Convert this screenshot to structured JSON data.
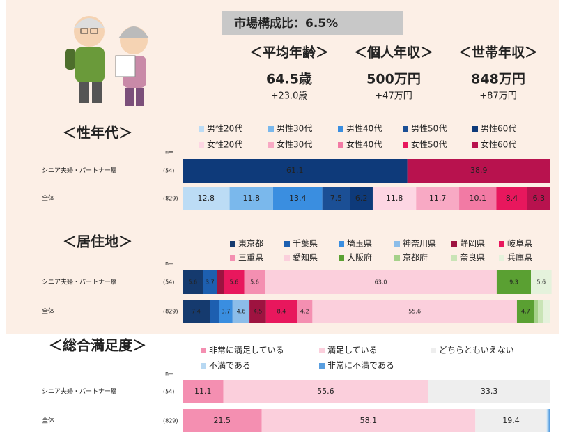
{
  "header": {
    "market_share": "市場構成比：6.5%",
    "stats": [
      {
        "label": "＜平均年齢＞",
        "value": "64.5歳",
        "diff": "+23.0歳"
      },
      {
        "label": "＜個人年収＞",
        "value": "500万円",
        "diff": "+47万円"
      },
      {
        "label": "＜世帯年収＞",
        "value": "848万円",
        "diff": "+87万円"
      }
    ]
  },
  "chart_data": [
    {
      "type": "stacked-bar",
      "title": "＜性年代＞",
      "categories": [
        "シニア夫婦・パートナー層",
        "全体"
      ],
      "n_label": "n=",
      "sample_sizes": [
        "(54)",
        "(829)"
      ],
      "xlim": [
        0,
        100
      ],
      "series": [
        {
          "name": "男性20代",
          "color": "#bcdcf5",
          "values": [
            null,
            12.8
          ],
          "value_labels": [
            null,
            "12.8"
          ]
        },
        {
          "name": "男性30代",
          "color": "#7ab8ec",
          "values": [
            null,
            11.8
          ],
          "value_labels": [
            null,
            "11.8"
          ]
        },
        {
          "name": "男性40代",
          "color": "#3a8ee0",
          "values": [
            null,
            13.4
          ],
          "value_labels": [
            null,
            "13.4"
          ]
        },
        {
          "name": "男性50代",
          "color": "#1b4f95",
          "values": [
            null,
            7.5
          ],
          "value_labels": [
            null,
            "7.5"
          ]
        },
        {
          "name": "男性60代",
          "color": "#0e3a7a",
          "values": [
            61.1,
            6.2
          ],
          "value_labels": [
            "61.1",
            "6.2"
          ]
        },
        {
          "name": "女性20代",
          "color": "#fdd6e3",
          "values": [
            null,
            11.8
          ],
          "value_labels": [
            null,
            "11.8"
          ]
        },
        {
          "name": "女性30代",
          "color": "#f8a9c4",
          "values": [
            null,
            11.7
          ],
          "value_labels": [
            null,
            "11.7"
          ]
        },
        {
          "name": "女性40代",
          "color": "#f27aa4",
          "values": [
            null,
            10.1
          ],
          "value_labels": [
            null,
            "10.1"
          ]
        },
        {
          "name": "女性50代",
          "color": "#e8175d",
          "values": [
            null,
            8.4
          ],
          "value_labels": [
            null,
            "8.4"
          ]
        },
        {
          "name": "女性60代",
          "color": "#b8124e",
          "values": [
            38.9,
            6.3
          ],
          "value_labels": [
            "38.9",
            "6.3"
          ]
        }
      ]
    },
    {
      "type": "stacked-bar",
      "title": "＜居住地＞",
      "categories": [
        "シニア夫婦・パートナー層",
        "全体"
      ],
      "n_label": "n=",
      "sample_sizes": [
        "(54)",
        "(829)"
      ],
      "xlim": [
        0,
        100
      ],
      "series": [
        {
          "name": "東京都",
          "color": "#153a6e",
          "values": [
            5.6,
            7.4
          ],
          "value_labels": [
            "5.6",
            "7.4"
          ]
        },
        {
          "name": "千葉県",
          "color": "#1d5fb0",
          "values": [
            3.7,
            2.5
          ],
          "value_labels": [
            "3.7",
            null
          ]
        },
        {
          "name": "埼玉県",
          "color": "#3a8ee0",
          "values": [
            null,
            3.7
          ],
          "value_labels": [
            null,
            "3.7"
          ]
        },
        {
          "name": "神奈川県",
          "color": "#8cbde9",
          "values": [
            null,
            4.6
          ],
          "value_labels": [
            null,
            "4.6"
          ]
        },
        {
          "name": "静岡県",
          "color": "#9e1340",
          "values": [
            1.9,
            4.5
          ],
          "value_labels": [
            null,
            "4.5"
          ]
        },
        {
          "name": "岐阜県",
          "color": "#e8175d",
          "values": [
            5.6,
            8.4
          ],
          "value_labels": [
            "5.6",
            "8.4"
          ]
        },
        {
          "name": "三重県",
          "color": "#f48fb1",
          "values": [
            5.6,
            4.2
          ],
          "value_labels": [
            "5.6",
            "4.2"
          ]
        },
        {
          "name": "愛知県",
          "color": "#fbcfdc",
          "values": [
            63,
            55.6
          ],
          "value_labels": [
            "63.0",
            "55.6"
          ]
        },
        {
          "name": "大阪府",
          "color": "#5aa032",
          "values": [
            9.3,
            4.7
          ],
          "value_labels": [
            "9.3",
            "4.7"
          ]
        },
        {
          "name": "京都府",
          "color": "#a5d18a",
          "values": [
            null,
            1
          ],
          "value_labels": [
            null,
            null
          ]
        },
        {
          "name": "奈良県",
          "color": "#c9e4b6",
          "values": [
            null,
            1.5
          ],
          "value_labels": [
            null,
            null
          ]
        },
        {
          "name": "兵庫県",
          "color": "#e5f2dc",
          "values": [
            5.6,
            1.9
          ],
          "value_labels": [
            "5.6",
            null
          ]
        }
      ]
    },
    {
      "type": "stacked-bar",
      "title": "＜総合満足度＞",
      "categories": [
        "シニア夫婦・パートナー層",
        "全体"
      ],
      "n_label": "n=",
      "sample_sizes": [
        "(54)",
        "(829)"
      ],
      "xlim": [
        0,
        100
      ],
      "series": [
        {
          "name": "非常に満足している",
          "color": "#f48fb1",
          "values": [
            11.1,
            21.5
          ],
          "value_labels": [
            "11.1",
            "21.5"
          ]
        },
        {
          "name": "満足している",
          "color": "#fbcfdc",
          "values": [
            55.6,
            58.1
          ],
          "value_labels": [
            "55.6",
            "58.1"
          ]
        },
        {
          "name": "どちらともいえない",
          "color": "#eeeeee",
          "values": [
            33.3,
            19.4
          ],
          "value_labels": [
            "33.3",
            "19.4"
          ]
        },
        {
          "name": "不満である",
          "color": "#b7d8f2",
          "values": [
            null,
            0.5
          ],
          "value_labels": [
            null,
            null
          ]
        },
        {
          "name": "非常に不満である",
          "color": "#5a9fe0",
          "values": [
            null,
            0.5
          ],
          "value_labels": [
            null,
            null
          ]
        }
      ]
    }
  ]
}
